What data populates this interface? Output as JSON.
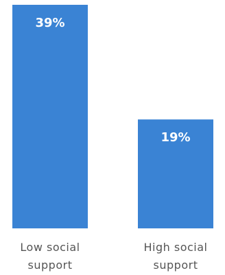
{
  "chart_data": {
    "type": "bar",
    "categories": [
      "Low social support",
      "High social support"
    ],
    "category_lines": [
      [
        "Low social",
        "support"
      ],
      [
        "High social",
        "support"
      ]
    ],
    "values": [
      39,
      19
    ],
    "value_labels": [
      "39%",
      "19%"
    ],
    "unit": "%",
    "title": "",
    "xlabel": "",
    "ylabel": "",
    "ylim": [
      0,
      39
    ],
    "grid": false,
    "legend": "none",
    "bar_color": "#3a83d4",
    "label_color": "#ffffff",
    "category_color": "#555555"
  }
}
